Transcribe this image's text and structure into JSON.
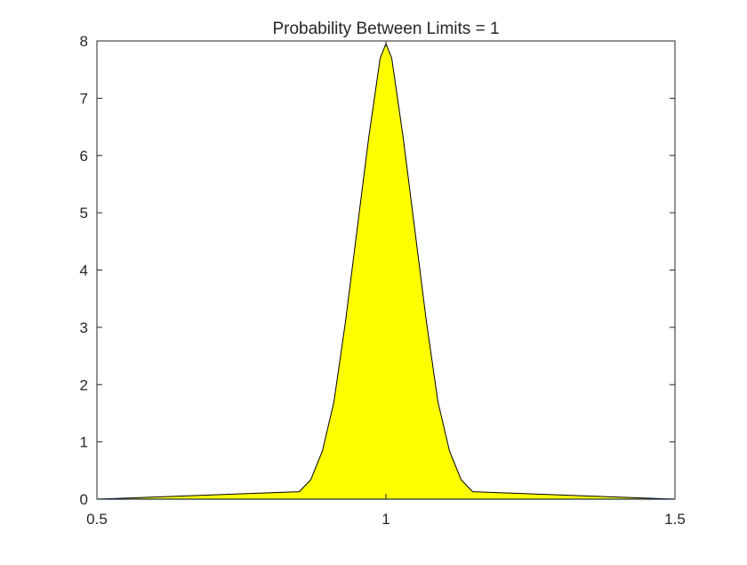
{
  "chart_data": {
    "type": "area",
    "title": "Probability Between Limits = 1",
    "xlabel": "",
    "ylabel": "",
    "xlim": [
      0.5,
      1.5
    ],
    "ylim": [
      0,
      8
    ],
    "x_ticks": [
      "0.5",
      "1",
      "1.5"
    ],
    "x_tick_values": [
      0.5,
      1,
      1.5
    ],
    "y_ticks": [
      "0",
      "1",
      "2",
      "3",
      "4",
      "5",
      "6",
      "7",
      "8"
    ],
    "y_tick_values": [
      0,
      1,
      2,
      3,
      4,
      5,
      6,
      7,
      8
    ],
    "grid": false,
    "box": true,
    "colors": {
      "fill": "#ffff00",
      "curve_outline": "#000000",
      "baseline": "#0072bd",
      "axes": "#262626"
    },
    "series": [
      {
        "x": [
          0.5,
          0.85,
          0.87,
          0.89,
          0.91,
          0.93,
          0.95,
          0.97,
          0.99,
          1.0,
          1.01,
          1.03,
          1.05,
          1.07,
          1.09,
          1.11,
          1.13,
          1.15,
          1.5
        ],
        "y": [
          0.0,
          0.13,
          0.34,
          0.84,
          1.7,
          3.1,
          4.7,
          6.3,
          7.7,
          7.95,
          7.7,
          6.3,
          4.7,
          3.1,
          1.7,
          0.84,
          0.34,
          0.13,
          0.0
        ]
      }
    ]
  }
}
